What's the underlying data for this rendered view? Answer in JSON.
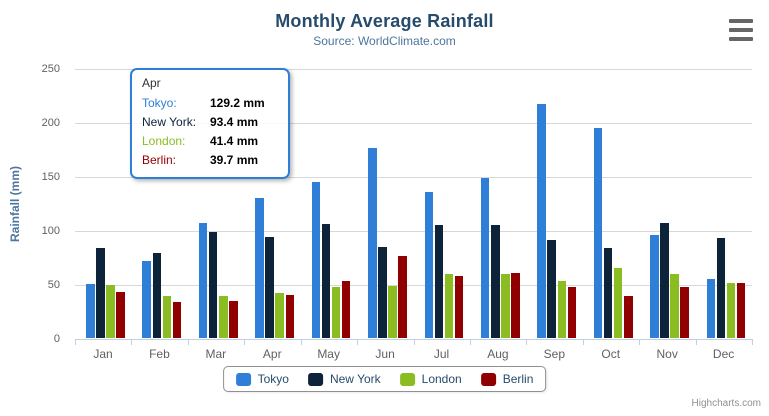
{
  "chart": {
    "title": "Monthly Average Rainfall",
    "subtitle": "Source: WorldClimate.com",
    "y_axis_title": "Rainfall (mm)",
    "credits": "Highcharts.com"
  },
  "chart_data": {
    "type": "bar",
    "title": "Monthly Average Rainfall",
    "subtitle": "Source: WorldClimate.com",
    "xlabel": "",
    "ylabel": "Rainfall (mm)",
    "ylim": [
      0,
      250
    ],
    "yticks": [
      0,
      50,
      100,
      150,
      200,
      250
    ],
    "grid": true,
    "legend_position": "bottom",
    "categories": [
      "Jan",
      "Feb",
      "Mar",
      "Apr",
      "May",
      "Jun",
      "Jul",
      "Aug",
      "Sep",
      "Oct",
      "Nov",
      "Dec"
    ],
    "series": [
      {
        "name": "Tokyo",
        "color": "#2f7ed8",
        "values": [
          49.9,
          71.5,
          106.4,
          129.2,
          144.0,
          176.0,
          135.6,
          148.5,
          216.4,
          194.1,
          95.6,
          54.4
        ]
      },
      {
        "name": "New York",
        "color": "#0d233a",
        "values": [
          83.6,
          78.8,
          98.5,
          93.4,
          106.0,
          84.5,
          105.0,
          104.3,
          91.2,
          83.5,
          106.6,
          92.3
        ]
      },
      {
        "name": "London",
        "color": "#8bbc21",
        "values": [
          48.9,
          38.8,
          39.3,
          41.4,
          47.0,
          48.3,
          59.0,
          59.6,
          52.4,
          65.2,
          59.3,
          51.2
        ]
      },
      {
        "name": "Berlin",
        "color": "#910000",
        "values": [
          42.4,
          33.2,
          34.5,
          39.7,
          52.6,
          75.5,
          57.4,
          60.4,
          47.6,
          39.1,
          46.8,
          51.1
        ]
      }
    ]
  },
  "tooltip": {
    "header": "Apr",
    "border_color": "#2f7ed8",
    "rows": [
      {
        "name": "Tokyo:",
        "value": "129.2 mm",
        "color": "#2f7ed8"
      },
      {
        "name": "New York:",
        "value": "93.4 mm",
        "color": "#0d233a"
      },
      {
        "name": "London:",
        "value": "41.4 mm",
        "color": "#8bbc21"
      },
      {
        "name": "Berlin:",
        "value": "39.7 mm",
        "color": "#910000"
      }
    ]
  },
  "style": {
    "grid_color": "#d8d8d8",
    "axis_line_color": "#c0d0e0",
    "label_color": "#606060",
    "title_color": "#274b6d",
    "subtitle_color": "#4d759e",
    "legend_text_color": "#274b6d",
    "credits_color": "#909090"
  }
}
